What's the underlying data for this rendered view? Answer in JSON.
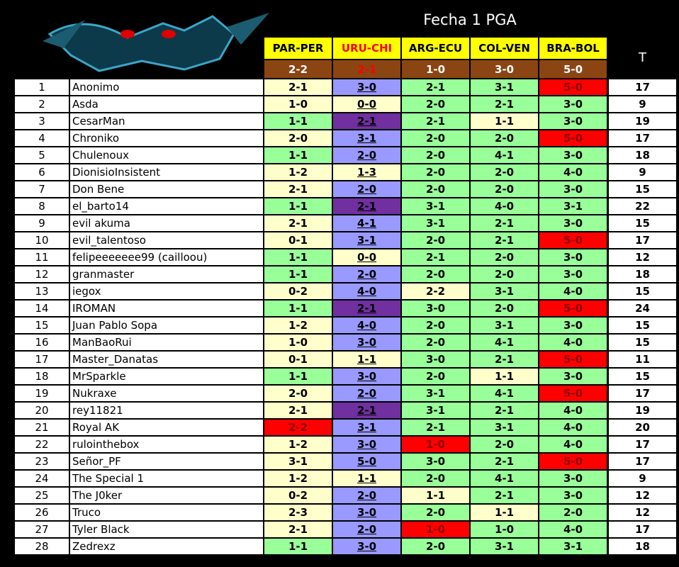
{
  "header": {
    "title": "Fecha 1 PGA",
    "matches": [
      "PAR-PER",
      "URU-CHI",
      "ARG-ECU",
      "COL-VEN",
      "BRA-BOL"
    ],
    "results": [
      "2-2",
      "2-1",
      "1-0",
      "3-0",
      "5-0"
    ],
    "total": "T"
  },
  "palette": {
    "cream": "#ffffcc",
    "green": "#99ff99",
    "blue": "#9999ff",
    "purple": "#7030a0",
    "red": "#ff0000"
  },
  "table": {
    "rows": [
      [
        "1",
        "Anonimo",
        "2-1",
        "3-0",
        "2-1",
        "3-1",
        "5-0",
        "17"
      ],
      [
        "2",
        "Asda",
        "1-0",
        "0-0",
        "2-0",
        "2-1",
        "3-0",
        "9"
      ],
      [
        "3",
        "CesarMan",
        "1-1",
        "2-1",
        "2-1",
        "1-1",
        "3-0",
        "19"
      ],
      [
        "4",
        "Chroniko",
        "2-0",
        "3-1",
        "2-0",
        "2-0",
        "5-0",
        "17"
      ],
      [
        "5",
        "Chulenoux",
        "1-1",
        "2-0",
        "2-0",
        "4-1",
        "3-0",
        "18"
      ],
      [
        "6",
        "DionisioInsistent",
        "1-2",
        "1-3",
        "2-0",
        "2-0",
        "4-0",
        "9"
      ],
      [
        "7",
        "Don Bene",
        "2-1",
        "2-0",
        "2-0",
        "2-0",
        "3-0",
        "15"
      ],
      [
        "8",
        "el_barto14",
        "1-1",
        "2-1",
        "3-1",
        "4-0",
        "3-1",
        "22"
      ],
      [
        "9",
        "evil akuma",
        "2-1",
        "4-1",
        "3-1",
        "2-1",
        "3-0",
        "15"
      ],
      [
        "10",
        "evil_talentoso",
        "0-1",
        "3-1",
        "2-0",
        "2-1",
        "5-0",
        "17"
      ],
      [
        "11",
        "felipeeeeeee99 (cailloou)",
        "1-1",
        "0-0",
        "2-1",
        "2-0",
        "3-0",
        "12"
      ],
      [
        "12",
        "granmaster",
        "1-1",
        "2-0",
        "2-0",
        "2-0",
        "3-0",
        "18"
      ],
      [
        "13",
        "iegox",
        "0-2",
        "4-0",
        "2-2",
        "3-1",
        "4-0",
        "15"
      ],
      [
        "14",
        "IROMAN",
        "1-1",
        "2-1",
        "3-0",
        "2-0",
        "5-0",
        "24"
      ],
      [
        "15",
        "Juan Pablo Sopa",
        "1-2",
        "4-0",
        "2-0",
        "3-1",
        "3-0",
        "15"
      ],
      [
        "16",
        "ManBaoRui",
        "1-0",
        "3-0",
        "2-0",
        "4-1",
        "4-0",
        "15"
      ],
      [
        "17",
        "Master_Danatas",
        "0-1",
        "1-1",
        "3-0",
        "2-1",
        "5-0",
        "11"
      ],
      [
        "18",
        "MrSparkle",
        "1-1",
        "3-0",
        "2-0",
        "1-1",
        "3-0",
        "15"
      ],
      [
        "19",
        "Nukraxe",
        "2-0",
        "2-0",
        "3-1",
        "4-1",
        "5-0",
        "17"
      ],
      [
        "20",
        "rey11821",
        "2-1",
        "2-1",
        "3-1",
        "2-1",
        "4-0",
        "19"
      ],
      [
        "21",
        "Royal AK",
        "2-2",
        "3-1",
        "2-1",
        "3-1",
        "4-0",
        "20"
      ],
      [
        "22",
        "rulointhebox",
        "1-2",
        "3-0",
        "1-0",
        "2-0",
        "4-0",
        "17"
      ],
      [
        "23",
        "Señor_PF",
        "3-1",
        "5-0",
        "3-0",
        "2-1",
        "5-0",
        "17"
      ],
      [
        "24",
        "The Special 1",
        "1-2",
        "1-1",
        "2-0",
        "4-1",
        "3-0",
        "9"
      ],
      [
        "25",
        "The J0ker",
        "0-2",
        "2-0",
        "1-1",
        "2-1",
        "3-0",
        "12"
      ],
      [
        "26",
        "Truco",
        "2-3",
        "3-0",
        "2-0",
        "1-1",
        "2-0",
        "12"
      ],
      [
        "27",
        "Tyler Black",
        "2-1",
        "2-0",
        "1-0",
        "1-0",
        "4-0",
        "17"
      ],
      [
        "28",
        "Zedrexz",
        "1-1",
        "3-0",
        "2-0",
        "3-1",
        "3-1",
        "18"
      ]
    ],
    "colors": [
      [
        "cream",
        "blue",
        "green",
        "green",
        "red"
      ],
      [
        "cream",
        "cream",
        "green",
        "green",
        "green"
      ],
      [
        "green",
        "purple",
        "green",
        "cream",
        "green"
      ],
      [
        "cream",
        "blue",
        "green",
        "green",
        "red"
      ],
      [
        "green",
        "blue",
        "green",
        "green",
        "green"
      ],
      [
        "cream",
        "cream",
        "green",
        "green",
        "green"
      ],
      [
        "cream",
        "blue",
        "green",
        "green",
        "green"
      ],
      [
        "green",
        "purple",
        "green",
        "green",
        "green"
      ],
      [
        "cream",
        "blue",
        "green",
        "green",
        "green"
      ],
      [
        "cream",
        "blue",
        "green",
        "green",
        "red"
      ],
      [
        "green",
        "cream",
        "green",
        "green",
        "green"
      ],
      [
        "green",
        "blue",
        "green",
        "green",
        "green"
      ],
      [
        "cream",
        "blue",
        "cream",
        "green",
        "green"
      ],
      [
        "green",
        "purple",
        "green",
        "green",
        "red"
      ],
      [
        "cream",
        "blue",
        "green",
        "green",
        "green"
      ],
      [
        "cream",
        "blue",
        "green",
        "green",
        "green"
      ],
      [
        "cream",
        "cream",
        "green",
        "green",
        "red"
      ],
      [
        "green",
        "blue",
        "green",
        "cream",
        "green"
      ],
      [
        "cream",
        "blue",
        "green",
        "green",
        "red"
      ],
      [
        "cream",
        "purple",
        "green",
        "green",
        "green"
      ],
      [
        "red",
        "blue",
        "green",
        "green",
        "green"
      ],
      [
        "cream",
        "blue",
        "red",
        "green",
        "green"
      ],
      [
        "cream",
        "blue",
        "green",
        "green",
        "red"
      ],
      [
        "cream",
        "cream",
        "green",
        "green",
        "green"
      ],
      [
        "cream",
        "blue",
        "cream",
        "green",
        "green"
      ],
      [
        "cream",
        "blue",
        "green",
        "cream",
        "green"
      ],
      [
        "cream",
        "blue",
        "red",
        "green",
        "green"
      ],
      [
        "green",
        "blue",
        "green",
        "green",
        "green"
      ]
    ]
  }
}
